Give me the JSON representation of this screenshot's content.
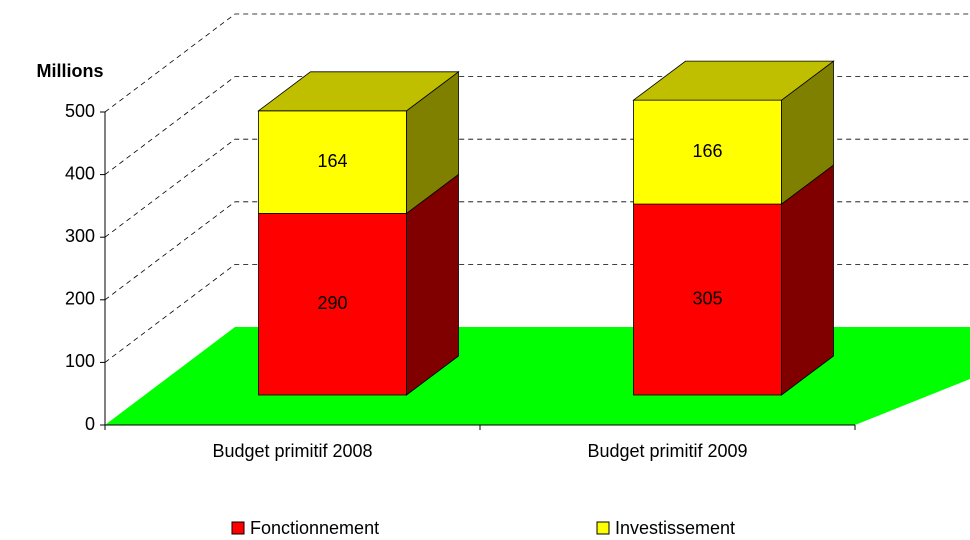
{
  "chart_data": {
    "type": "bar3d_stacked",
    "y_label": "Millions",
    "categories": [
      "Budget primitif 2008",
      "Budget primitif 2009"
    ],
    "series": [
      {
        "name": "Fonctionnement",
        "color": "#ff0000",
        "values": [
          290,
          305
        ]
      },
      {
        "name": "Investissement",
        "color": "#ffff00",
        "values": [
          164,
          166
        ]
      }
    ],
    "floor_color": "#00ff00",
    "ylim": [
      0,
      500
    ],
    "yticks": [
      0,
      100,
      200,
      300,
      400,
      500
    ],
    "grid": true
  }
}
